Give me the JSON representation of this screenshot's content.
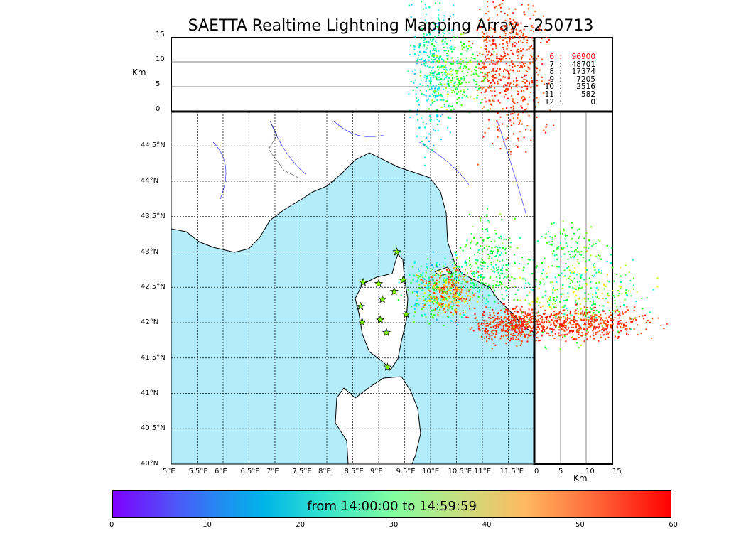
{
  "title": "SAETTA Realtime Lightning Mapping Array - 250713",
  "top_panel": {
    "ylabel": "Km",
    "yticks": [
      "15",
      "10",
      "5",
      "0"
    ]
  },
  "right_panel": {
    "xlabel": "Km",
    "xticks": [
      "0",
      "5",
      "10",
      "15"
    ]
  },
  "map": {
    "lon_ticks": [
      "5°E",
      "5.5°E",
      "6°E",
      "6.5°E",
      "7°E",
      "7.5°E",
      "8°E",
      "8.5°E",
      "9°E",
      "9.5°E",
      "10°E",
      "10.5°E",
      "11°E",
      "11.5°E"
    ],
    "lat_ticks": [
      "44.5°N",
      "44°N",
      "43.5°N",
      "43°N",
      "42.5°N",
      "42°N",
      "41.5°N",
      "41°N",
      "40.5°N",
      "40°N"
    ],
    "sea_color": "#b3ecfb"
  },
  "station_counts": [
    {
      "n": "6",
      "sep": ":",
      "v": "96900",
      "color": "#ff0000"
    },
    {
      "n": "7",
      "sep": ":",
      "v": "48701"
    },
    {
      "n": "8",
      "sep": ":",
      "v": "17374"
    },
    {
      "n": "9",
      "sep": ":",
      "v": "7205"
    },
    {
      "n": "10",
      "sep": ":",
      "v": "2516"
    },
    {
      "n": "11",
      "sep": ":",
      "v": "582"
    },
    {
      "n": "12",
      "sep": ":",
      "v": "0"
    }
  ],
  "colorbar": {
    "label": "from 14:00:00 to 14:59:59",
    "ticks": [
      "0",
      "10",
      "20",
      "30",
      "40",
      "50",
      "60"
    ]
  }
}
